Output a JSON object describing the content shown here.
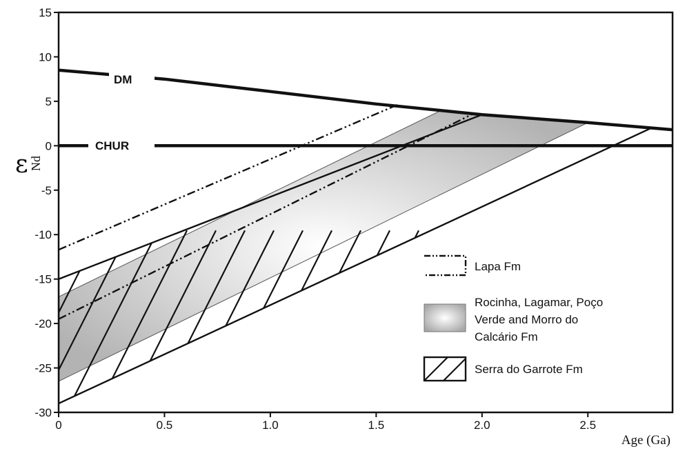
{
  "chart_data": {
    "type": "line",
    "title": "",
    "xlabel": "Age (Ga)",
    "ylabel_symbol": "ε",
    "ylabel_subscript": "Nd",
    "xlim": [
      0,
      2.9
    ],
    "ylim": [
      -30,
      15
    ],
    "x_ticks": [
      0,
      0.5,
      1.0,
      1.5,
      2.0,
      2.5
    ],
    "x_tick_labels": [
      "0",
      "0.5",
      "1.0",
      "1.5",
      "2.0",
      "2.5"
    ],
    "y_ticks": [
      15,
      10,
      5,
      0,
      -5,
      -10,
      -15,
      -20,
      -25,
      -30
    ],
    "y_tick_labels": [
      "15",
      "10",
      "5",
      "0",
      "-5",
      "-10",
      "-15",
      "-20",
      "-25",
      "-30"
    ],
    "grid": false,
    "legend_position": "bottom-right",
    "reference_lines": [
      {
        "name": "DM",
        "points": [
          [
            0,
            8.5
          ],
          [
            0.5,
            7.5
          ],
          [
            1.0,
            6.1
          ],
          [
            1.5,
            4.7
          ],
          [
            2.0,
            3.5
          ],
          [
            2.5,
            2.6
          ],
          [
            2.9,
            1.8
          ]
        ]
      },
      {
        "name": "CHUR",
        "points": [
          [
            0,
            0
          ],
          [
            2.9,
            0
          ]
        ]
      }
    ],
    "series": [
      {
        "name": "Lapa Fm",
        "style": "dash-dot-dot",
        "lines": [
          [
            [
              0,
              -11.7
            ],
            [
              1.6,
              4.6
            ]
          ],
          [
            [
              0,
              -19.5
            ],
            [
              1.95,
              3.5
            ]
          ]
        ]
      },
      {
        "name": "Rocinha, Lagamar, Poço Verde and Morro do Calcário Fm",
        "style": "gray-gradient-band",
        "polygon": [
          [
            0,
            -17
          ],
          [
            1.8,
            3.9
          ],
          [
            2.5,
            2.6
          ],
          [
            0,
            -26.5
          ]
        ]
      },
      {
        "name": "Serra do Garrote Fm",
        "style": "hatched-band",
        "polygon": [
          [
            0,
            -15
          ],
          [
            2.0,
            3.5
          ],
          [
            2.8,
            2.0
          ],
          [
            0,
            -29
          ]
        ]
      }
    ],
    "legend": [
      {
        "label": "Lapa Fm"
      },
      {
        "label": "Rocinha, Lagamar, Poço Verde and Morro do Calcário Fm",
        "lines": [
          "Rocinha, Lagamar, Poço",
          "Verde and Morro do",
          "Calcário Fm"
        ]
      },
      {
        "label": "Serra do Garrote Fm"
      }
    ]
  }
}
